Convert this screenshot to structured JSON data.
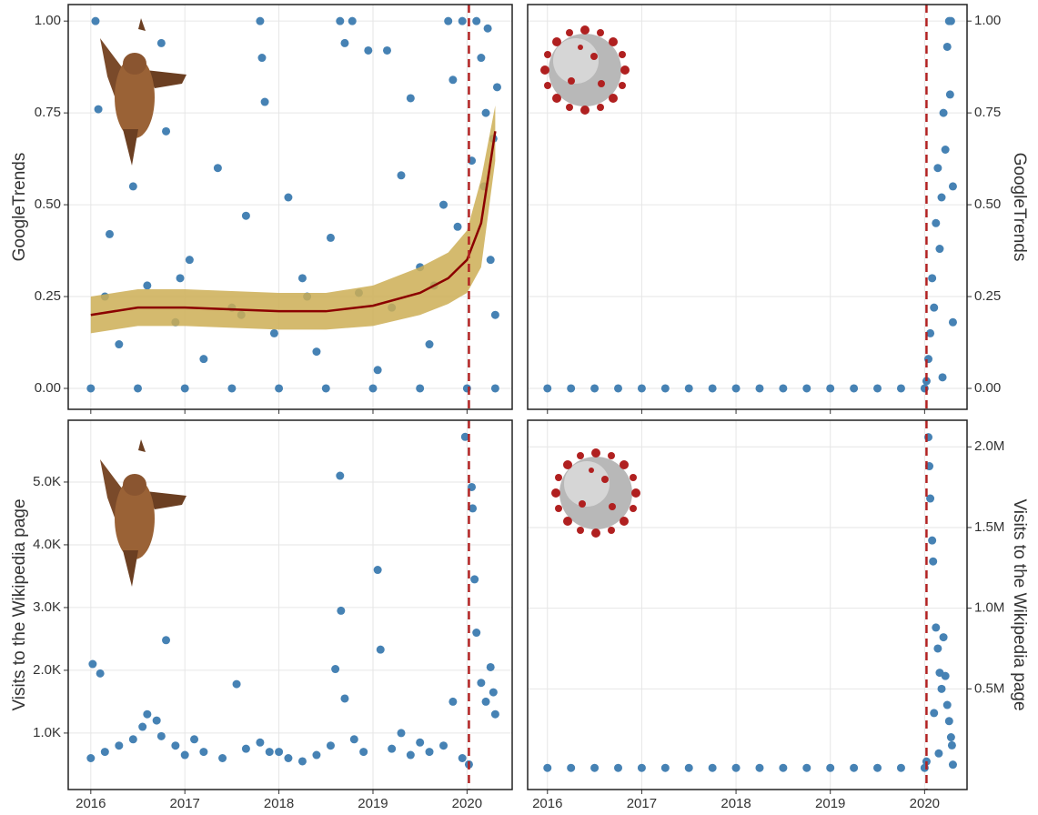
{
  "chart_data": [
    {
      "type": "scatter",
      "ylabel": "GoogleTrends",
      "yaxis_side": "left",
      "show_xtick_labels": false,
      "color": "#4682b4",
      "grid": true,
      "xlim": [
        2015.76,
        2020.48
      ],
      "ylim": [
        -0.057,
        1.045
      ],
      "xticks": [
        2016,
        2017,
        2018,
        2019,
        2020
      ],
      "yticks": [
        {
          "value": 0,
          "label": "0.00"
        },
        {
          "value": 0.25,
          "label": "0.25"
        },
        {
          "value": 0.5,
          "label": "0.50"
        },
        {
          "value": 0.75,
          "label": "0.75"
        },
        {
          "value": 1,
          "label": "1.00"
        }
      ],
      "vline": 2020.02,
      "vline_color": "#b22222",
      "x": [
        2016.0,
        2016.5,
        2017.0,
        2017.5,
        2018.0,
        2018.5,
        2019.0,
        2019.5,
        2020.0,
        2020.3,
        2016.05,
        2016.08,
        2016.2,
        2016.3,
        2016.45,
        2016.6,
        2016.75,
        2016.8,
        2016.9,
        2017.05,
        2017.2,
        2017.35,
        2017.5,
        2017.65,
        2017.8,
        2017.82,
        2017.85,
        2017.95,
        2018.1,
        2018.25,
        2018.4,
        2018.55,
        2018.65,
        2018.7,
        2018.78,
        2018.85,
        2018.95,
        2019.05,
        2019.15,
        2019.3,
        2019.4,
        2019.5,
        2019.6,
        2019.75,
        2019.8,
        2019.85,
        2019.9,
        2019.95,
        2020.05,
        2020.1,
        2020.15,
        2020.18,
        2020.2,
        2020.22,
        2020.25,
        2020.28,
        2020.3,
        2020.32,
        2016.15,
        2016.95,
        2017.6,
        2018.3,
        2019.2,
        2019.65
      ],
      "values": [
        0,
        0,
        0,
        0,
        0,
        0,
        0,
        0,
        0,
        0,
        1.0,
        0.76,
        0.42,
        0.12,
        0.55,
        0.28,
        0.94,
        0.7,
        0.18,
        0.35,
        0.08,
        0.6,
        0.22,
        0.47,
        1.0,
        0.9,
        0.78,
        0.15,
        0.52,
        0.3,
        0.1,
        0.41,
        1.0,
        0.94,
        1.0,
        0.26,
        0.92,
        0.05,
        0.92,
        0.58,
        0.79,
        0.33,
        0.12,
        0.5,
        1.0,
        0.84,
        0.44,
        1.0,
        0.62,
        1.0,
        0.9,
        0.55,
        0.75,
        0.98,
        0.35,
        0.68,
        0.2,
        0.82,
        0.25,
        0.3,
        0.2,
        0.25,
        0.22,
        0.28
      ],
      "fit": {
        "color": "#8b0000",
        "band_color": "#cdae55",
        "x": [
          2016,
          2016.5,
          2017,
          2017.5,
          2018,
          2018.5,
          2019,
          2019.5,
          2019.8,
          2020,
          2020.15,
          2020.3
        ],
        "values": [
          0.2,
          0.22,
          0.22,
          0.215,
          0.21,
          0.21,
          0.225,
          0.26,
          0.3,
          0.35,
          0.45,
          0.7
        ],
        "lower": [
          0.15,
          0.17,
          0.17,
          0.165,
          0.16,
          0.16,
          0.17,
          0.2,
          0.23,
          0.26,
          0.33,
          0.62
        ],
        "upper": [
          0.25,
          0.27,
          0.27,
          0.265,
          0.26,
          0.26,
          0.28,
          0.33,
          0.37,
          0.43,
          0.57,
          0.77
        ]
      }
    },
    {
      "type": "scatter",
      "ylabel": "GoogleTrends",
      "yaxis_side": "right",
      "show_xtick_labels": false,
      "color": "#4682b4",
      "grid": true,
      "xlim": [
        2015.79,
        2020.45
      ],
      "ylim": [
        -0.057,
        1.045
      ],
      "xticks": [
        2016,
        2017,
        2018,
        2019,
        2020
      ],
      "yticks": [
        {
          "value": 0,
          "label": "0.00"
        },
        {
          "value": 0.25,
          "label": "0.25"
        },
        {
          "value": 0.5,
          "label": "0.50"
        },
        {
          "value": 0.75,
          "label": "0.75"
        },
        {
          "value": 1,
          "label": "1.00"
        }
      ],
      "vline": 2020.02,
      "vline_color": "#b22222",
      "x": [
        2016.0,
        2016.25,
        2016.5,
        2016.75,
        2017.0,
        2017.25,
        2017.5,
        2017.75,
        2018.0,
        2018.25,
        2018.5,
        2018.75,
        2019.0,
        2019.25,
        2019.5,
        2019.75,
        2020.0,
        2020.02,
        2020.04,
        2020.06,
        2020.08,
        2020.1,
        2020.12,
        2020.14,
        2020.16,
        2020.18,
        2020.2,
        2020.22,
        2020.24,
        2020.26,
        2020.28,
        2020.3,
        2020.27,
        2020.19,
        2020.3
      ],
      "values": [
        0,
        0,
        0,
        0,
        0,
        0,
        0,
        0,
        0,
        0,
        0,
        0,
        0,
        0,
        0,
        0,
        0,
        0.02,
        0.08,
        0.15,
        0.3,
        0.22,
        0.45,
        0.6,
        0.38,
        0.52,
        0.75,
        0.65,
        0.93,
        1.0,
        1.0,
        0.55,
        0.8,
        0.03,
        0.18
      ]
    },
    {
      "type": "scatter",
      "ylabel": "Visits to the Wikipedia page",
      "yaxis_side": "left",
      "show_xtick_labels": true,
      "color": "#4682b4",
      "grid": true,
      "xlim": [
        2015.76,
        2020.48
      ],
      "ylim": [
        100,
        5985
      ],
      "xticks": [
        2016,
        2017,
        2018,
        2019,
        2020
      ],
      "yticks": [
        {
          "value": 1000,
          "label": "1.0K"
        },
        {
          "value": 2000,
          "label": "2.0K"
        },
        {
          "value": 3000,
          "label": "3.0K"
        },
        {
          "value": 4000,
          "label": "4.0K"
        },
        {
          "value": 5000,
          "label": "5.0K"
        }
      ],
      "vline": 2020.02,
      "vline_color": "#b22222",
      "x": [
        2016.0,
        2016.02,
        2016.1,
        2016.15,
        2016.3,
        2016.45,
        2016.55,
        2016.6,
        2016.75,
        2016.8,
        2016.9,
        2017.0,
        2017.2,
        2017.4,
        2017.55,
        2017.65,
        2017.8,
        2017.9,
        2018.1,
        2018.25,
        2018.4,
        2018.55,
        2018.6,
        2018.65,
        2018.66,
        2018.7,
        2018.8,
        2018.9,
        2019.05,
        2019.08,
        2019.2,
        2019.4,
        2019.6,
        2019.75,
        2019.85,
        2019.95,
        2019.98,
        2020.02,
        2020.05,
        2020.06,
        2020.08,
        2020.1,
        2020.15,
        2020.2,
        2020.25,
        2020.28,
        2020.3,
        2016.7,
        2017.1,
        2018.0,
        2019.3,
        2019.5
      ],
      "values": [
        600,
        2100,
        1950,
        700,
        800,
        900,
        1100,
        1300,
        950,
        2480,
        800,
        650,
        700,
        600,
        1780,
        750,
        850,
        700,
        600,
        550,
        650,
        800,
        2020,
        5100,
        2950,
        1550,
        900,
        700,
        3600,
        2330,
        750,
        650,
        700,
        800,
        1500,
        600,
        5720,
        500,
        4920,
        4580,
        3450,
        2600,
        1800,
        1500,
        2050,
        1650,
        1300,
        1200,
        900,
        700,
        1000,
        850
      ]
    },
    {
      "type": "scatter",
      "ylabel": "Visits to the Wikipedia page",
      "yaxis_side": "right",
      "show_xtick_labels": true,
      "color": "#4682b4",
      "grid": true,
      "xlim": [
        2015.79,
        2020.45
      ],
      "ylim": [
        -124000,
        2165000
      ],
      "xticks": [
        2016,
        2017,
        2018,
        2019,
        2020
      ],
      "yticks": [
        {
          "value": 500000,
          "label": "0.5M"
        },
        {
          "value": 1000000,
          "label": "1.0M"
        },
        {
          "value": 1500000,
          "label": "1.5M"
        },
        {
          "value": 2000000,
          "label": "2.0M"
        }
      ],
      "vline": 2020.02,
      "vline_color": "#b22222",
      "x": [
        2016.0,
        2016.25,
        2016.5,
        2016.75,
        2017.0,
        2017.25,
        2017.5,
        2017.75,
        2018.0,
        2018.25,
        2018.5,
        2018.75,
        2019.0,
        2019.25,
        2019.5,
        2019.75,
        2020.0,
        2020.02,
        2020.04,
        2020.05,
        2020.06,
        2020.08,
        2020.09,
        2020.1,
        2020.12,
        2020.14,
        2020.16,
        2020.18,
        2020.2,
        2020.22,
        2020.24,
        2020.26,
        2020.28,
        2020.3,
        2020.29,
        2020.15
      ],
      "values": [
        10000,
        10000,
        10000,
        10000,
        10000,
        10000,
        10000,
        10000,
        10000,
        10000,
        10000,
        10000,
        10000,
        10000,
        10000,
        10000,
        10000,
        50000,
        2060000,
        1880000,
        1680000,
        1420000,
        1290000,
        350000,
        880000,
        750000,
        600000,
        500000,
        820000,
        580000,
        400000,
        300000,
        200000,
        30000,
        150000,
        100000
      ]
    }
  ]
}
